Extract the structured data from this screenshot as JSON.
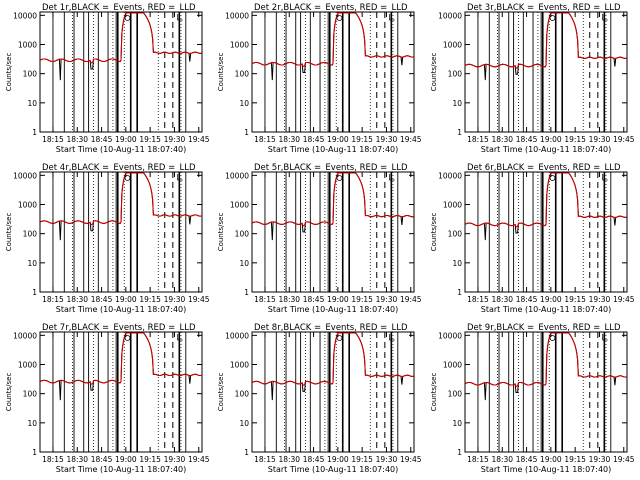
{
  "colors": {
    "events": "#000000",
    "lld": "#cc0000",
    "background": "#ffffff"
  },
  "shared": {
    "xlabel": "Start Time (10-Aug-11 18:07:40)",
    "ylabel": "Counts/sec",
    "xticks": [
      "18:15",
      "18:30",
      "18:45",
      "19:00",
      "19:15",
      "19:30",
      "19:45"
    ],
    "yticks": [
      "1",
      "10",
      "100",
      "1000",
      "10000"
    ],
    "ylim": [
      1,
      13000
    ],
    "yscale": "log",
    "xlim_minutes_after_start": [
      0,
      100
    ]
  },
  "chart_data": [
    {
      "type": "line",
      "title": "Det  1r,BLACK =_Events, RED =_LLD",
      "base": 290,
      "flare": 12000,
      "tail": 520
    },
    {
      "type": "line",
      "title": "Det  2r,BLACK =_Events, RED =_LLD",
      "base": 220,
      "flare": 12000,
      "tail": 390
    },
    {
      "type": "line",
      "title": "Det  3r,BLACK =_Events, RED =_LLD",
      "base": 190,
      "flare": 12000,
      "tail": 350
    },
    {
      "type": "line",
      "title": "Det  4r,BLACK =_Events, RED =_LLD",
      "base": 250,
      "flare": 12000,
      "tail": 420
    },
    {
      "type": "line",
      "title": "Det  5r,BLACK =_Events, RED =_LLD",
      "base": 230,
      "flare": 12000,
      "tail": 400
    },
    {
      "type": "line",
      "title": "Det  6r,BLACK =_Events, RED =_LLD",
      "base": 210,
      "flare": 12000,
      "tail": 380
    },
    {
      "type": "line",
      "title": "Det  7r,BLACK =_Events, RED =_LLD",
      "base": 260,
      "flare": 12000,
      "tail": 440
    },
    {
      "type": "line",
      "title": "Det  8r,BLACK =_Events, RED =_LLD",
      "base": 240,
      "flare": 12000,
      "tail": 410
    },
    {
      "type": "line",
      "title": "Det  9r,BLACK =_Events, RED =_LLD",
      "base": 220,
      "flare": 12000,
      "tail": 390
    }
  ]
}
